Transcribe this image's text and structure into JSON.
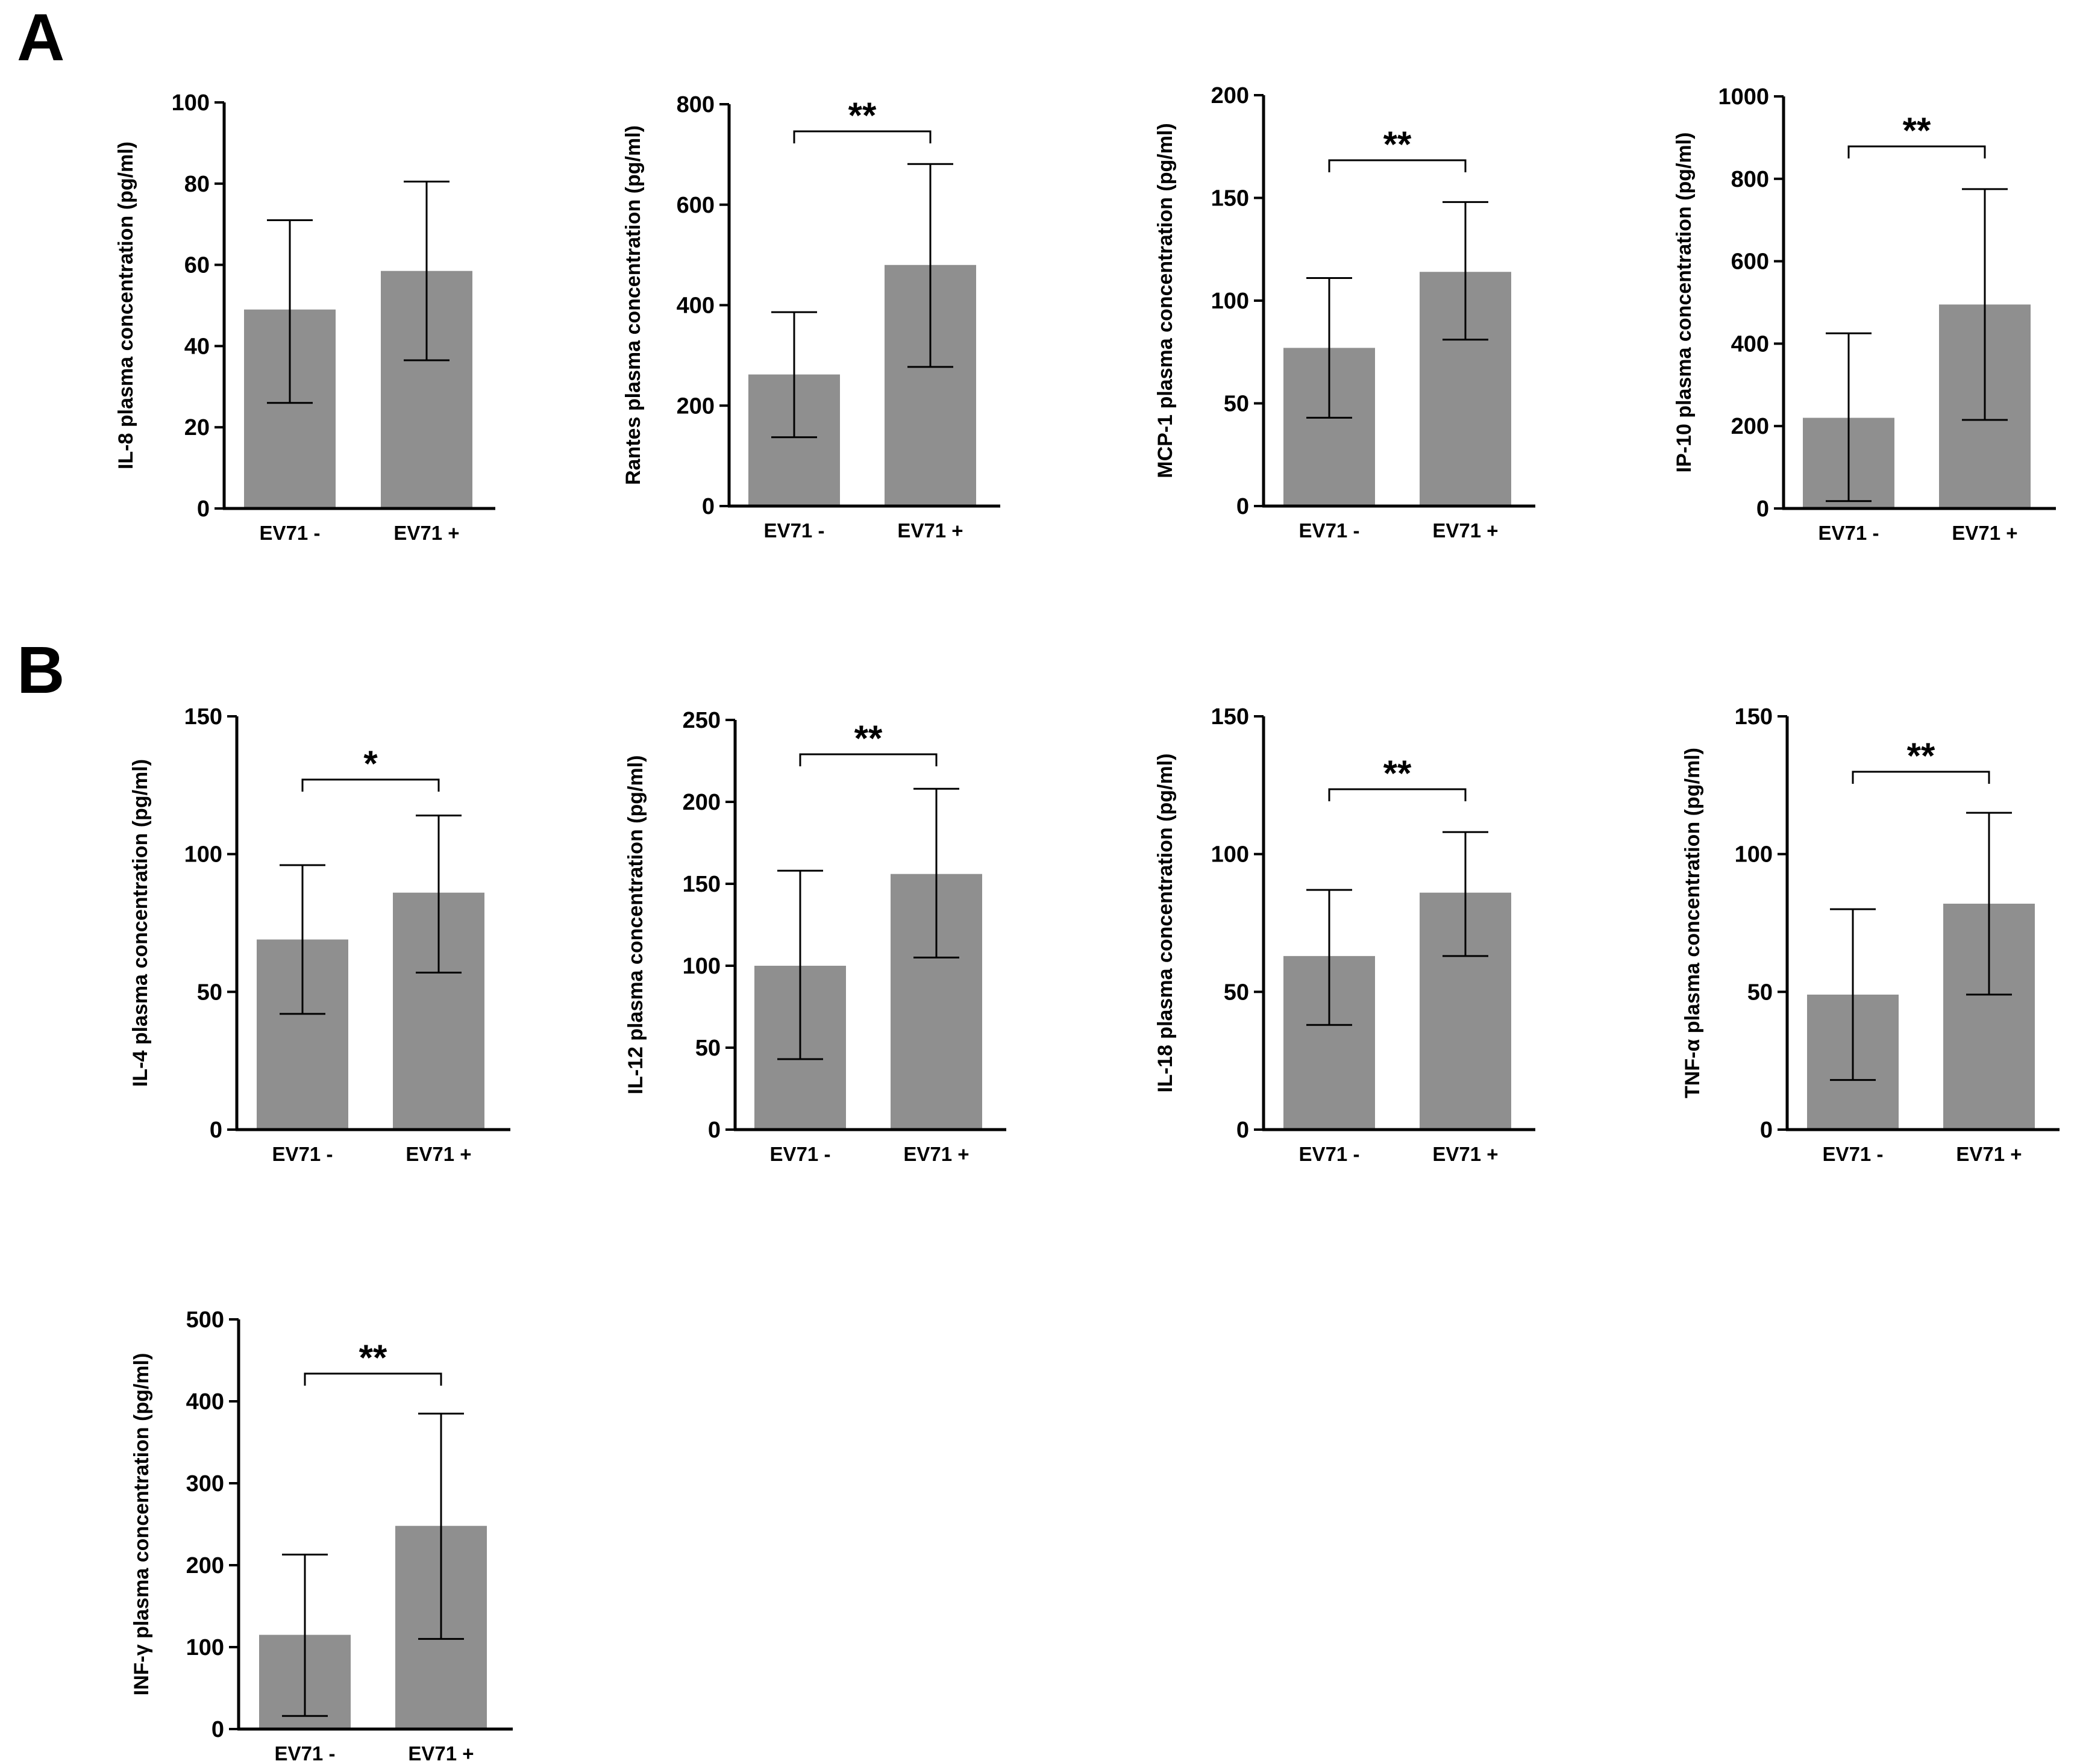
{
  "panels": [
    {
      "letter": "A"
    },
    {
      "letter": "B"
    }
  ],
  "chart_data": [
    {
      "type": "bar",
      "panel": "A",
      "ylabel": "IL-8 plasma concentration (pg/ml)",
      "ylim": [
        0,
        100
      ],
      "yticks": [
        0,
        20,
        40,
        60,
        80,
        100
      ],
      "categories": [
        "EV71 -",
        "EV71 +"
      ],
      "values": [
        49,
        58.5
      ],
      "error_low": [
        26,
        36.5
      ],
      "error_high": [
        71,
        80.5
      ],
      "significance": "",
      "bar_color": "#8f8f8f"
    },
    {
      "type": "bar",
      "panel": "A",
      "ylabel": "Rantes plasma concentration (pg/ml)",
      "ylim": [
        0,
        800
      ],
      "yticks": [
        0,
        200,
        400,
        600,
        800
      ],
      "categories": [
        "EV71 -",
        "EV71 +"
      ],
      "values": [
        262,
        480
      ],
      "error_low": [
        137,
        277
      ],
      "error_high": [
        386,
        681
      ],
      "significance": "**",
      "bar_color": "#8f8f8f"
    },
    {
      "type": "bar",
      "panel": "A",
      "ylabel": "MCP-1 plasma concentration (pg/ml)",
      "ylim": [
        0,
        200
      ],
      "yticks": [
        0,
        50,
        100,
        150,
        200
      ],
      "categories": [
        "EV71 -",
        "EV71 +"
      ],
      "values": [
        77,
        114
      ],
      "error_low": [
        43,
        81
      ],
      "error_high": [
        111,
        148
      ],
      "significance": "**",
      "bar_color": "#8f8f8f"
    },
    {
      "type": "bar",
      "panel": "A",
      "ylabel": "IP-10 plasma concentration (pg/ml)",
      "ylim": [
        0,
        1000
      ],
      "yticks": [
        0,
        200,
        400,
        600,
        800,
        1000
      ],
      "categories": [
        "EV71 -",
        "EV71 +"
      ],
      "values": [
        220,
        495
      ],
      "error_low": [
        18,
        215
      ],
      "error_high": [
        425,
        775
      ],
      "significance": "**",
      "bar_color": "#8f8f8f"
    },
    {
      "type": "bar",
      "panel": "B",
      "ylabel": "IL-4 plasma concentration (pg/ml)",
      "ylim": [
        0,
        150
      ],
      "yticks": [
        0,
        50,
        100,
        150
      ],
      "categories": [
        "EV71 -",
        "EV71 +"
      ],
      "values": [
        69,
        86
      ],
      "error_low": [
        42,
        57
      ],
      "error_high": [
        96,
        114
      ],
      "significance": "*",
      "bar_color": "#8f8f8f"
    },
    {
      "type": "bar",
      "panel": "B",
      "ylabel": "IL-12 plasma concentration (pg/ml)",
      "ylim": [
        0,
        250
      ],
      "yticks": [
        0,
        50,
        100,
        150,
        200,
        250
      ],
      "categories": [
        "EV71 -",
        "EV71 +"
      ],
      "values": [
        100,
        156
      ],
      "error_low": [
        43,
        105
      ],
      "error_high": [
        158,
        208
      ],
      "significance": "**",
      "bar_color": "#8f8f8f"
    },
    {
      "type": "bar",
      "panel": "B",
      "ylabel": "IL-18 plasma concentration (pg/ml)",
      "ylim": [
        0,
        150
      ],
      "yticks": [
        0,
        50,
        100,
        150
      ],
      "categories": [
        "EV71 -",
        "EV71 +"
      ],
      "values": [
        63,
        86
      ],
      "error_low": [
        38,
        63
      ],
      "error_high": [
        87,
        108
      ],
      "significance": "**",
      "bar_color": "#8f8f8f"
    },
    {
      "type": "bar",
      "panel": "B",
      "ylabel": "TNF-α plasma concentration (pg/ml)",
      "ylim": [
        0,
        150
      ],
      "yticks": [
        0,
        50,
        100,
        150
      ],
      "categories": [
        "EV71 -",
        "EV71 +"
      ],
      "values": [
        49,
        82
      ],
      "error_low": [
        18,
        49
      ],
      "error_high": [
        80,
        115
      ],
      "significance": "**",
      "bar_color": "#8f8f8f"
    },
    {
      "type": "bar",
      "panel": "B",
      "ylabel": "INF-γ plasma concentration (pg/ml)",
      "ylim": [
        0,
        500
      ],
      "yticks": [
        0,
        100,
        200,
        300,
        400,
        500
      ],
      "categories": [
        "EV71 -",
        "EV71 +"
      ],
      "values": [
        115,
        248
      ],
      "error_low": [
        16,
        110
      ],
      "error_high": [
        213,
        385
      ],
      "significance": "**",
      "bar_color": "#8f8f8f"
    }
  ]
}
